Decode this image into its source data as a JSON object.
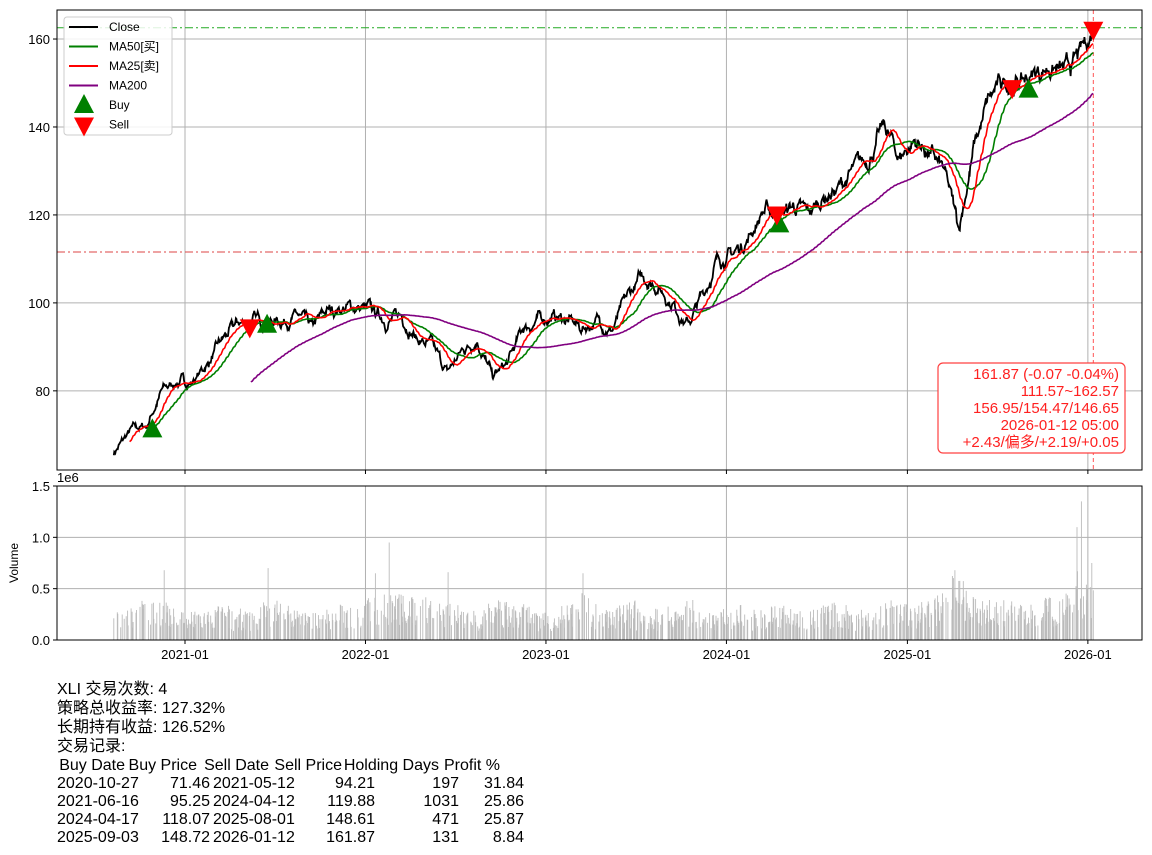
{
  "chart_data": [
    {
      "type": "line",
      "panel": "price",
      "ylim": [
        62,
        166.6
      ],
      "yticks": [
        80,
        100,
        120,
        140,
        160
      ],
      "xticks": [
        "2021-01",
        "2022-01",
        "2023-01",
        "2024-01",
        "2025-01",
        "2026-01"
      ],
      "grid": true,
      "legend_placement": "upper-left",
      "legend": [
        {
          "label": "Close",
          "color": "#000000",
          "kind": "line"
        },
        {
          "label": "MA50[买]",
          "color": "#008000",
          "kind": "line"
        },
        {
          "label": "MA25[卖]",
          "color": "#ff0000",
          "kind": "line"
        },
        {
          "label": "MA200",
          "color": "#800080",
          "kind": "line"
        },
        {
          "label": "Buy",
          "color": "#008000",
          "kind": "triangle-up"
        },
        {
          "label": "Sell",
          "color": "#ff0000",
          "kind": "triangle-down"
        }
      ],
      "close_monthly_approx": {
        "dates": [
          "2020-08-10",
          "2020-09-15",
          "2020-10-15",
          "2020-11-15",
          "2020-12-15",
          "2021-01-15",
          "2021-02-15",
          "2021-03-15",
          "2021-04-15",
          "2021-05-15",
          "2021-06-15",
          "2021-07-15",
          "2021-08-15",
          "2021-09-15",
          "2021-10-15",
          "2021-11-15",
          "2021-12-15",
          "2022-01-15",
          "2022-02-15",
          "2022-03-15",
          "2022-04-15",
          "2022-05-15",
          "2022-06-15",
          "2022-07-15",
          "2022-08-15",
          "2022-09-15",
          "2022-10-15",
          "2022-11-15",
          "2022-12-15",
          "2023-01-15",
          "2023-02-15",
          "2023-03-15",
          "2023-04-15",
          "2023-05-15",
          "2023-06-15",
          "2023-07-15",
          "2023-08-15",
          "2023-09-15",
          "2023-10-15",
          "2023-11-15",
          "2023-12-15",
          "2024-01-15",
          "2024-02-15",
          "2024-03-15",
          "2024-04-15",
          "2024-05-15",
          "2024-06-15",
          "2024-07-15",
          "2024-08-15",
          "2024-09-15",
          "2024-10-15",
          "2024-11-15",
          "2024-12-15",
          "2025-01-15",
          "2025-02-15",
          "2025-03-15",
          "2025-04-15",
          "2025-05-15",
          "2025-06-15",
          "2025-07-15",
          "2025-08-15",
          "2025-09-15",
          "2025-10-15",
          "2025-11-15",
          "2025-12-15",
          "2026-01-12"
        ],
        "values": [
          66,
          71,
          72,
          80,
          82,
          82,
          86,
          91,
          95,
          96,
          96,
          96,
          97,
          94,
          98,
          99,
          99,
          98,
          96,
          97,
          92,
          90,
          84,
          89,
          92,
          83,
          86,
          94,
          96,
          97,
          96,
          94,
          96,
          94,
          101,
          106,
          104,
          100,
          95,
          102,
          110,
          111,
          115,
          121,
          120,
          122,
          120,
          124,
          126,
          130,
          133,
          140,
          133,
          137,
          134,
          130,
          117,
          135,
          146,
          150,
          150,
          152,
          154,
          152,
          156,
          161.87
        ]
      },
      "moving_averages": [
        "MA25",
        "MA50",
        "MA200"
      ],
      "hlines": [
        {
          "value": 162.57,
          "color": "#22aa22",
          "style": "dashdot"
        },
        {
          "value": 111.57,
          "color": "#dd4444",
          "style": "dashdot"
        }
      ],
      "vline": {
        "date": "2026-01-12",
        "color": "#ff5555",
        "style": "dashed"
      },
      "buy_signals": [
        {
          "date": "2020-10-27",
          "price": 71.46
        },
        {
          "date": "2021-06-16",
          "price": 95.25
        },
        {
          "date": "2024-04-17",
          "price": 118.07
        },
        {
          "date": "2025-09-03",
          "price": 148.72
        }
      ],
      "sell_signals": [
        {
          "date": "2021-05-12",
          "price": 94.21
        },
        {
          "date": "2024-04-12",
          "price": 119.88
        },
        {
          "date": "2025-08-01",
          "price": 148.61
        },
        {
          "date": "2026-01-12",
          "price": 161.87
        }
      ],
      "annotation": {
        "lines": [
          "161.87 (-0.07 -0.04%)",
          "111.57~162.57",
          "156.95/154.47/146.65",
          "2026-01-12 05:00",
          "+2.43/偏多/+2.19/+0.05"
        ],
        "color": "#ff0000"
      }
    },
    {
      "type": "bar",
      "panel": "volume",
      "ylabel": "Volume",
      "scale_label": "1e6",
      "ylim": [
        0,
        1.5
      ],
      "yticks": [
        "0.0",
        "0.5",
        "1.0",
        "1.5"
      ],
      "bar_color": "#bbbbbb",
      "typical_level_monthly_approx": [
        0.25,
        0.25,
        0.28,
        0.3,
        0.22,
        0.2,
        0.22,
        0.25,
        0.22,
        0.2,
        0.28,
        0.3,
        0.22,
        0.2,
        0.22,
        0.25,
        0.25,
        0.3,
        0.35,
        0.33,
        0.3,
        0.3,
        0.3,
        0.25,
        0.22,
        0.28,
        0.28,
        0.25,
        0.2,
        0.22,
        0.25,
        0.35,
        0.25,
        0.25,
        0.28,
        0.22,
        0.22,
        0.25,
        0.28,
        0.25,
        0.22,
        0.25,
        0.22,
        0.22,
        0.25,
        0.22,
        0.25,
        0.25,
        0.28,
        0.22,
        0.22,
        0.28,
        0.25,
        0.28,
        0.3,
        0.35,
        0.45,
        0.3,
        0.3,
        0.28,
        0.25,
        0.25,
        0.3,
        0.38,
        0.5,
        0.45
      ],
      "spikes": [
        {
          "date": "2020-11-20",
          "value": 0.68
        },
        {
          "date": "2021-06-18",
          "value": 0.7
        },
        {
          "date": "2022-02-18",
          "value": 0.95
        },
        {
          "date": "2022-01-21",
          "value": 0.65
        },
        {
          "date": "2022-06-17",
          "value": 0.66
        },
        {
          "date": "2023-03-17",
          "value": 0.65
        },
        {
          "date": "2025-04-07",
          "value": 0.68
        },
        {
          "date": "2025-12-19",
          "value": 1.35
        },
        {
          "date": "2025-12-10",
          "value": 1.1
        },
        {
          "date": "2026-01-09",
          "value": 0.75
        }
      ]
    }
  ],
  "summary": {
    "line1": "XLI 交易次数: 4",
    "line2": "策略总收益率: 127.32%",
    "line3": "长期持有收益: 126.52%",
    "line4": "交易记录:"
  },
  "trades": {
    "headers": [
      "Buy Date",
      "Buy Price",
      "Sell Date",
      "Sell Price",
      "Holding Days",
      "Profit %"
    ],
    "rows": [
      [
        "2020-10-27",
        "71.46",
        "2021-05-12",
        "94.21",
        "197",
        "31.84"
      ],
      [
        "2021-06-16",
        "95.25",
        "2024-04-12",
        "119.88",
        "1031",
        "25.86"
      ],
      [
        "2024-04-17",
        "118.07",
        "2025-08-01",
        "148.61",
        "471",
        "25.87"
      ],
      [
        "2025-09-03",
        "148.72",
        "2026-01-12",
        "161.87",
        "131",
        "8.84"
      ]
    ]
  }
}
